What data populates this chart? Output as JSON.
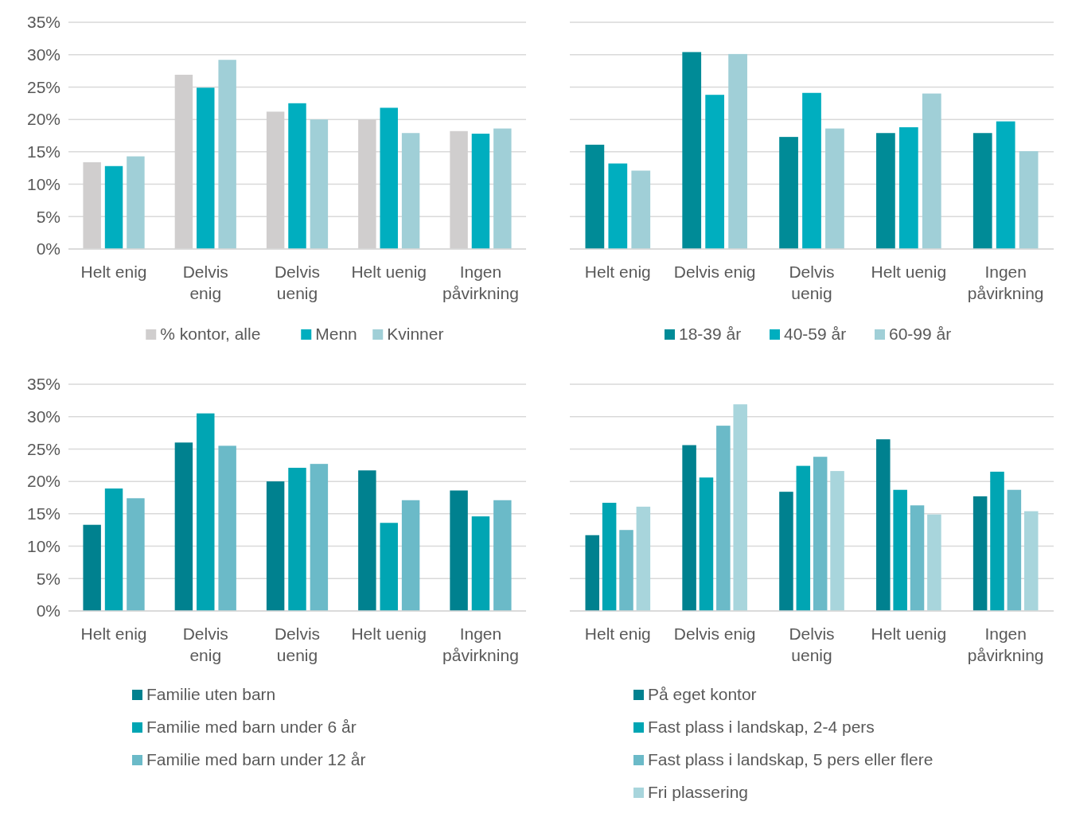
{
  "chart_data": [
    {
      "type": "bar",
      "categories": [
        "Helt enig",
        "Delvis enig",
        "Delvis uenig",
        "Helt uenig",
        "Ingen påvirkning"
      ],
      "ylim": [
        0,
        35
      ],
      "yticks": [
        {
          "value": 0,
          "label": "0%"
        },
        {
          "value": 5,
          "label": "5%"
        },
        {
          "value": 10,
          "label": "10%"
        },
        {
          "value": 15,
          "label": "15%"
        },
        {
          "value": 20,
          "label": "20%"
        },
        {
          "value": 25,
          "label": "25%"
        },
        {
          "value": 30,
          "label": "30%"
        },
        {
          "value": 35,
          "label": "35%"
        }
      ],
      "grid": "y",
      "legend": "bottom",
      "series": [
        {
          "name": "% kontor, alle",
          "color": "#d0cece",
          "values": [
            13.4,
            26.9,
            21.2,
            20.0,
            18.2
          ]
        },
        {
          "name": "Menn",
          "color": "#00aebf",
          "values": [
            12.8,
            24.9,
            22.5,
            21.8,
            17.8
          ]
        },
        {
          "name": "Kvinner",
          "color": "#a0cfd7",
          "values": [
            14.3,
            29.2,
            20.0,
            17.9,
            18.6
          ]
        }
      ]
    },
    {
      "type": "bar",
      "categories": [
        "Helt enig",
        "Delvis enig",
        "Delvis uenig",
        "Helt uenig",
        "Ingen påvirkning"
      ],
      "ylim": [
        0,
        35
      ],
      "yticks": [
        0,
        5,
        10,
        15,
        20,
        25,
        30,
        35
      ],
      "tick_labels": "x",
      "grid": "y",
      "legend": "bottom",
      "series": [
        {
          "name": "18-39 år",
          "color": "#008b97",
          "values": [
            16.1,
            30.4,
            17.3,
            17.9,
            17.9
          ]
        },
        {
          "name": "40-59 år",
          "color": "#00aebf",
          "values": [
            13.2,
            23.8,
            24.1,
            18.8,
            19.7
          ]
        },
        {
          "name": "60-99 år",
          "color": "#a0cfd7",
          "values": [
            12.1,
            30.1,
            18.6,
            24.0,
            15.1
          ]
        }
      ]
    },
    {
      "type": "bar",
      "categories": [
        "Helt enig",
        "Delvis enig",
        "Delvis uenig",
        "Helt uenig",
        "Ingen påvirkning"
      ],
      "ylim": [
        0,
        35
      ],
      "yticks": [
        {
          "value": 0,
          "label": "0%"
        },
        {
          "value": 5,
          "label": "5%"
        },
        {
          "value": 10,
          "label": "10%"
        },
        {
          "value": 15,
          "label": "15%"
        },
        {
          "value": 20,
          "label": "20%"
        },
        {
          "value": 25,
          "label": "25%"
        },
        {
          "value": 30,
          "label": "30%"
        },
        {
          "value": 35,
          "label": "35%"
        }
      ],
      "grid": "y",
      "legend": "bottom",
      "series": [
        {
          "name": "Familie uten barn",
          "color": "#00818f",
          "values": [
            13.3,
            26.0,
            20.0,
            21.7,
            18.6
          ]
        },
        {
          "name": "Familie med barn under 6 år",
          "color": "#00a5b3",
          "values": [
            18.9,
            30.5,
            22.1,
            13.6,
            14.6
          ]
        },
        {
          "name": "Familie med barn under 12 år",
          "color": "#6bbac8",
          "values": [
            17.4,
            25.5,
            22.7,
            17.1,
            17.1
          ]
        }
      ]
    },
    {
      "type": "bar",
      "categories": [
        "Helt enig",
        "Delvis enig",
        "Delvis uenig",
        "Helt uenig",
        "Ingen påvirkning"
      ],
      "ylim": [
        0,
        35
      ],
      "yticks": [
        0,
        5,
        10,
        15,
        20,
        25,
        30,
        35
      ],
      "tick_labels": "x",
      "grid": "y",
      "legend": "bottom",
      "series": [
        {
          "name": "På eget kontor",
          "color": "#00818f",
          "values": [
            11.7,
            25.6,
            18.4,
            26.5,
            17.7
          ]
        },
        {
          "name": "Fast plass i landskap, 2-4 pers",
          "color": "#00a5b3",
          "values": [
            16.7,
            20.6,
            22.4,
            18.7,
            21.5
          ]
        },
        {
          "name": "Fast plass i landskap, 5 pers eller flere",
          "color": "#6bbac8",
          "values": [
            12.5,
            28.6,
            23.8,
            16.3,
            18.7
          ]
        },
        {
          "name": "Fri plassering",
          "color": "#a8d5dc",
          "values": [
            16.1,
            31.9,
            21.6,
            14.9,
            15.4
          ]
        }
      ]
    }
  ]
}
